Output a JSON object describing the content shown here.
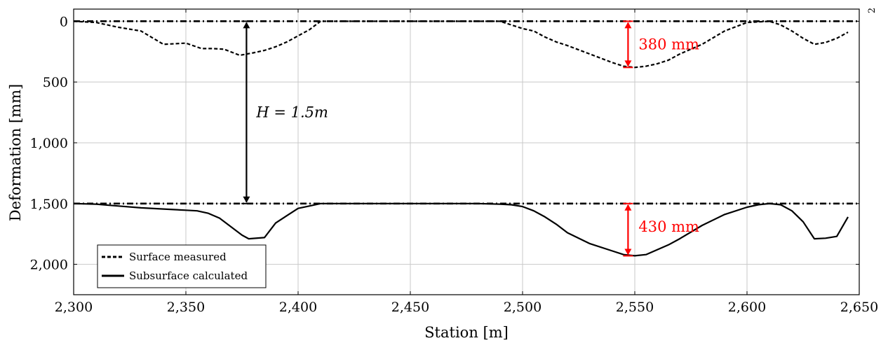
{
  "page_number": "2",
  "chart_data": {
    "type": "line",
    "title": "",
    "xlabel": "Station [m]",
    "ylabel": "Deformation [mm]",
    "xlim": [
      2300,
      2650
    ],
    "ylim": [
      2250,
      -100
    ],
    "y_inverted": true,
    "grid": true,
    "legend_position": "bottom-left",
    "xticks": [
      2300,
      2350,
      2400,
      2450,
      2500,
      2550,
      2600,
      2650
    ],
    "xtick_labels": [
      "2,300",
      "2,350",
      "2,400",
      "2,450",
      "2,500",
      "2,550",
      "2,600",
      "2,650"
    ],
    "yticks": [
      0,
      500,
      1000,
      1500,
      2000
    ],
    "ytick_labels": [
      "0",
      "500",
      "1,000",
      "1,500",
      "2,000"
    ],
    "reference_lines": [
      {
        "y": 0,
        "style": "dash-dot"
      },
      {
        "y": 1500,
        "style": "dash-dot"
      }
    ],
    "series": [
      {
        "name": "Surface measured",
        "style": "dashed",
        "x": [
          2300,
          2310,
          2320,
          2330,
          2340,
          2345,
          2350,
          2357,
          2362,
          2367,
          2374,
          2380,
          2385,
          2390,
          2395,
          2400,
          2405,
          2410,
          2420,
          2450,
          2480,
          2490,
          2495,
          2500,
          2505,
          2510,
          2515,
          2520,
          2530,
          2540,
          2545,
          2550,
          2555,
          2560,
          2565,
          2570,
          2580,
          2590,
          2600,
          2610,
          2615,
          2620,
          2625,
          2630,
          2635,
          2640,
          2645
        ],
        "y": [
          0,
          10,
          50,
          80,
          190,
          185,
          180,
          225,
          225,
          230,
          280,
          260,
          240,
          210,
          170,
          120,
          70,
          0,
          0,
          0,
          0,
          0,
          30,
          60,
          80,
          130,
          170,
          200,
          270,
          340,
          370,
          380,
          370,
          350,
          320,
          270,
          190,
          80,
          10,
          0,
          30,
          80,
          140,
          190,
          175,
          140,
          90
        ]
      },
      {
        "name": "Subsurface calculated",
        "style": "solid",
        "x": [
          2300,
          2310,
          2320,
          2330,
          2340,
          2350,
          2355,
          2360,
          2365,
          2370,
          2375,
          2378,
          2385,
          2390,
          2395,
          2400,
          2405,
          2410,
          2420,
          2450,
          2480,
          2490,
          2495,
          2500,
          2505,
          2510,
          2515,
          2520,
          2530,
          2540,
          2545,
          2550,
          2555,
          2560,
          2565,
          2570,
          2580,
          2590,
          2600,
          2605,
          2610,
          2615,
          2620,
          2625,
          2630,
          2635,
          2640,
          2645
        ],
        "y": [
          1500,
          1505,
          1520,
          1535,
          1545,
          1555,
          1560,
          1580,
          1620,
          1690,
          1760,
          1790,
          1780,
          1660,
          1600,
          1540,
          1520,
          1500,
          1500,
          1500,
          1500,
          1505,
          1510,
          1525,
          1560,
          1610,
          1670,
          1740,
          1830,
          1890,
          1920,
          1930,
          1920,
          1880,
          1840,
          1790,
          1680,
          1590,
          1530,
          1510,
          1500,
          1510,
          1560,
          1650,
          1790,
          1785,
          1770,
          1610
        ]
      }
    ],
    "annotations": [
      {
        "text": "380 mm",
        "color": "#ff0000",
        "x": 2547,
        "y_from": 0,
        "y_to": 380
      },
      {
        "text": "430 mm",
        "color": "#ff0000",
        "x": 2547,
        "y_from": 1500,
        "y_to": 1930
      },
      {
        "text": "H = 1.5m",
        "color": "#000000",
        "x": 2377,
        "y_from": 0,
        "y_to": 1500
      }
    ]
  }
}
